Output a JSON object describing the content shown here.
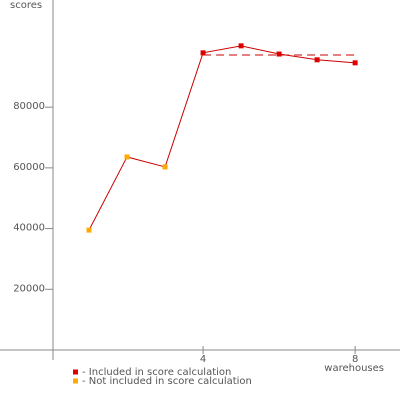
{
  "chart_data": {
    "type": "line",
    "y_label": "scores",
    "x_label": "warehouses",
    "x": [
      1,
      2,
      3,
      4,
      5,
      6,
      7,
      8
    ],
    "series": [
      {
        "color": "#cc0000",
        "values": [
          39500,
          63600,
          60300,
          97900,
          100200,
          97500,
          95600,
          94600
        ],
        "included": [
          false,
          false,
          false,
          true,
          true,
          true,
          true,
          true
        ]
      }
    ],
    "reference_line": {
      "value": 97200,
      "x": [
        4,
        8
      ]
    },
    "legend": [
      {
        "label": "- Included in score calculation",
        "color": "#dd0000"
      },
      {
        "label": "- Not included in score calculation",
        "color": "#ffaa00"
      }
    ],
    "xlim": [
      0,
      9.18
    ],
    "xticks": [
      4,
      8
    ],
    "ylim": [
      0,
      115300
    ],
    "yticks": [
      20000,
      40000,
      60000,
      80000
    ]
  }
}
